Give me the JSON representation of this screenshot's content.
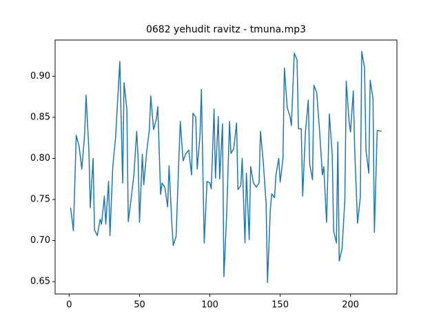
{
  "chart_data": {
    "type": "line",
    "title": "0682 yehudit ravitz - tmuna.mp3",
    "x": [
      1,
      3,
      5,
      7,
      9,
      11,
      12,
      14,
      15,
      17,
      18,
      20,
      22,
      23,
      25,
      26,
      28,
      29,
      31,
      33,
      36,
      38,
      39,
      41,
      42,
      44,
      46,
      48,
      49,
      50,
      52,
      53,
      55,
      57,
      58,
      60,
      62,
      63,
      65,
      66,
      68,
      70,
      71,
      73,
      74,
      76,
      78,
      79,
      81,
      83,
      85,
      87,
      88,
      90,
      91,
      93,
      94,
      96,
      98,
      100,
      101,
      103,
      104,
      106,
      107,
      109,
      110,
      112,
      114,
      115,
      117,
      119,
      120,
      122,
      123,
      125,
      126,
      128,
      129,
      131,
      133,
      135,
      136,
      138,
      140,
      141,
      143,
      144,
      146,
      147,
      149,
      150,
      152,
      153,
      155,
      157,
      158,
      160,
      162,
      163,
      165,
      166,
      168,
      170,
      171,
      173,
      174,
      176,
      178,
      180,
      181,
      183,
      185,
      187,
      188,
      190,
      191,
      192,
      194,
      196,
      197,
      199,
      200,
      202,
      203,
      205,
      207,
      208,
      210,
      211,
      213,
      214,
      216,
      217,
      219,
      222
    ],
    "series": [
      {
        "color": "#1f77b4",
        "values": [
          0.74,
          0.712,
          0.828,
          0.815,
          0.787,
          0.83,
          0.877,
          0.81,
          0.74,
          0.8,
          0.713,
          0.706,
          0.726,
          0.72,
          0.754,
          0.72,
          0.772,
          0.706,
          0.79,
          0.826,
          0.918,
          0.77,
          0.892,
          0.86,
          0.723,
          0.75,
          0.78,
          0.833,
          0.8,
          0.722,
          0.805,
          0.768,
          0.806,
          0.835,
          0.876,
          0.835,
          0.848,
          0.863,
          0.756,
          0.77,
          0.765,
          0.741,
          0.791,
          0.72,
          0.694,
          0.705,
          0.8,
          0.845,
          0.797,
          0.806,
          0.81,
          0.78,
          0.855,
          0.85,
          0.787,
          0.828,
          0.884,
          0.697,
          0.772,
          0.77,
          0.763,
          0.86,
          0.776,
          0.851,
          0.775,
          0.842,
          0.656,
          0.733,
          0.845,
          0.806,
          0.812,
          0.843,
          0.762,
          0.767,
          0.8,
          0.697,
          0.782,
          0.701,
          0.79,
          0.77,
          0.765,
          0.77,
          0.833,
          0.795,
          0.745,
          0.649,
          0.738,
          0.757,
          0.752,
          0.78,
          0.8,
          0.771,
          0.8,
          0.91,
          0.862,
          0.851,
          0.84,
          0.928,
          0.92,
          0.836,
          0.836,
          0.754,
          0.833,
          0.871,
          0.793,
          0.774,
          0.889,
          0.88,
          0.834,
          0.78,
          0.79,
          0.722,
          0.854,
          0.805,
          0.712,
          0.697,
          0.82,
          0.675,
          0.69,
          0.75,
          0.894,
          0.845,
          0.832,
          0.882,
          0.81,
          0.721,
          0.753,
          0.93,
          0.91,
          0.81,
          0.782,
          0.895,
          0.873,
          0.71,
          0.834,
          0.833
        ]
      }
    ],
    "xlim": [
      -10,
      233
    ],
    "xticks": [
      0,
      50,
      100,
      150,
      200
    ],
    "ylim": [
      0.635,
      0.944
    ],
    "yticks": [
      0.65,
      {
        "value": 0.7,
        "label": "0.70"
      },
      0.75,
      {
        "value": 0.8,
        "label": "0.80"
      },
      0.85,
      {
        "value": 0.9,
        "label": "0.90"
      }
    ]
  }
}
